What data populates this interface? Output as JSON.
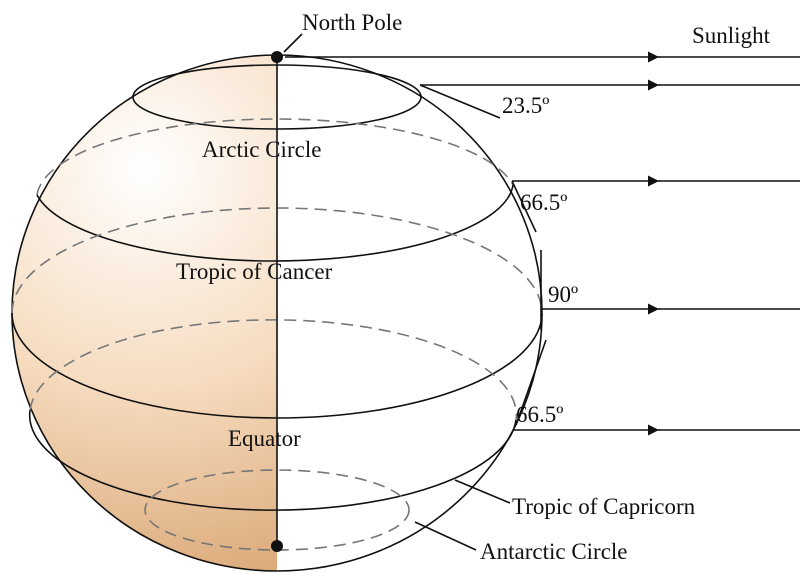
{
  "labels": {
    "north_pole": "North Pole",
    "sunlight": "Sunlight",
    "angle_arctic": "23.5º",
    "arctic_circle": "Arctic Circle",
    "angle_cancer": "66.5º",
    "tropic_of_cancer": "Tropic of Cancer",
    "angle_equator": "90º",
    "angle_capricorn": "66.5º",
    "equator": "Equator",
    "tropic_of_capricorn": "Tropic of Capricorn",
    "antarctic_circle": "Antarctic Circle"
  }
}
